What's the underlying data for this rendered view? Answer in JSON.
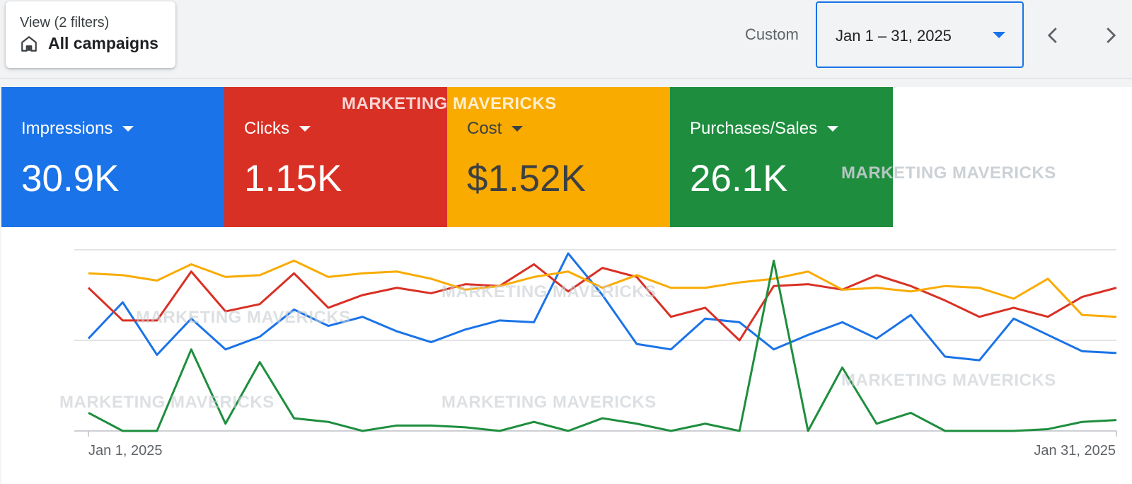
{
  "header": {
    "view_sub": "View (2 filters)",
    "view_title": "All campaigns",
    "custom_label": "Custom",
    "date_range": "Jan 1 – 31, 2025",
    "home_icon": "home-icon",
    "caret_icon": "caret-down-icon",
    "prev_icon": "chevron-left-icon",
    "next_icon": "chevron-right-icon",
    "accent": "#1a73e8"
  },
  "metrics": [
    {
      "label": "Impressions",
      "value": "30.9K",
      "color": "#1a73e8"
    },
    {
      "label": "Clicks",
      "value": "1.15K",
      "color": "#d93025"
    },
    {
      "label": "Cost",
      "value": "$1.52K",
      "color": "#f9ab00"
    },
    {
      "label": "Purchases/Sales",
      "value": "26.1K",
      "color": "#1e8e3e"
    }
  ],
  "watermark": "MARKETING MAVERICKS",
  "chart_data": {
    "type": "line",
    "x_start_label": "Jan 1, 2025",
    "x_end_label": "Jan 31, 2025",
    "x": [
      1,
      2,
      3,
      4,
      5,
      6,
      7,
      8,
      9,
      10,
      11,
      12,
      13,
      14,
      15,
      16,
      17,
      18,
      19,
      20,
      21,
      22,
      23,
      24,
      25,
      26,
      27,
      28,
      29,
      30,
      31
    ],
    "ylim": [
      0,
      100
    ],
    "grid": true,
    "series": [
      {
        "color": "#1a73e8",
        "values": [
          51,
          71,
          42,
          62,
          45,
          52,
          67,
          58,
          63,
          55,
          49,
          56,
          61,
          60,
          98,
          75,
          48,
          45,
          62,
          60,
          45,
          53,
          60,
          51,
          64,
          41,
          39,
          62,
          53,
          44,
          43
        ]
      },
      {
        "color": "#d93025",
        "values": [
          79,
          61,
          61,
          88,
          66,
          70,
          87,
          68,
          75,
          79,
          76,
          81,
          80,
          92,
          77,
          90,
          85,
          63,
          68,
          50,
          80,
          81,
          78,
          86,
          80,
          72,
          63,
          68,
          63,
          74,
          79
        ]
      },
      {
        "color": "#f9ab00",
        "values": [
          87,
          86,
          83,
          92,
          85,
          86,
          94,
          85,
          87,
          88,
          84,
          78,
          80,
          85,
          88,
          79,
          86,
          79,
          79,
          82,
          84,
          88,
          78,
          79,
          77,
          80,
          79,
          73,
          84,
          64,
          63
        ]
      },
      {
        "color": "#1e8e3e",
        "values": [
          10,
          0,
          0,
          45,
          4,
          38,
          7,
          5,
          0,
          3,
          3,
          2,
          0,
          5,
          0,
          7,
          4,
          0,
          4,
          0,
          94,
          0,
          35,
          4,
          10,
          0,
          0,
          0,
          1,
          5,
          6
        ]
      }
    ]
  }
}
